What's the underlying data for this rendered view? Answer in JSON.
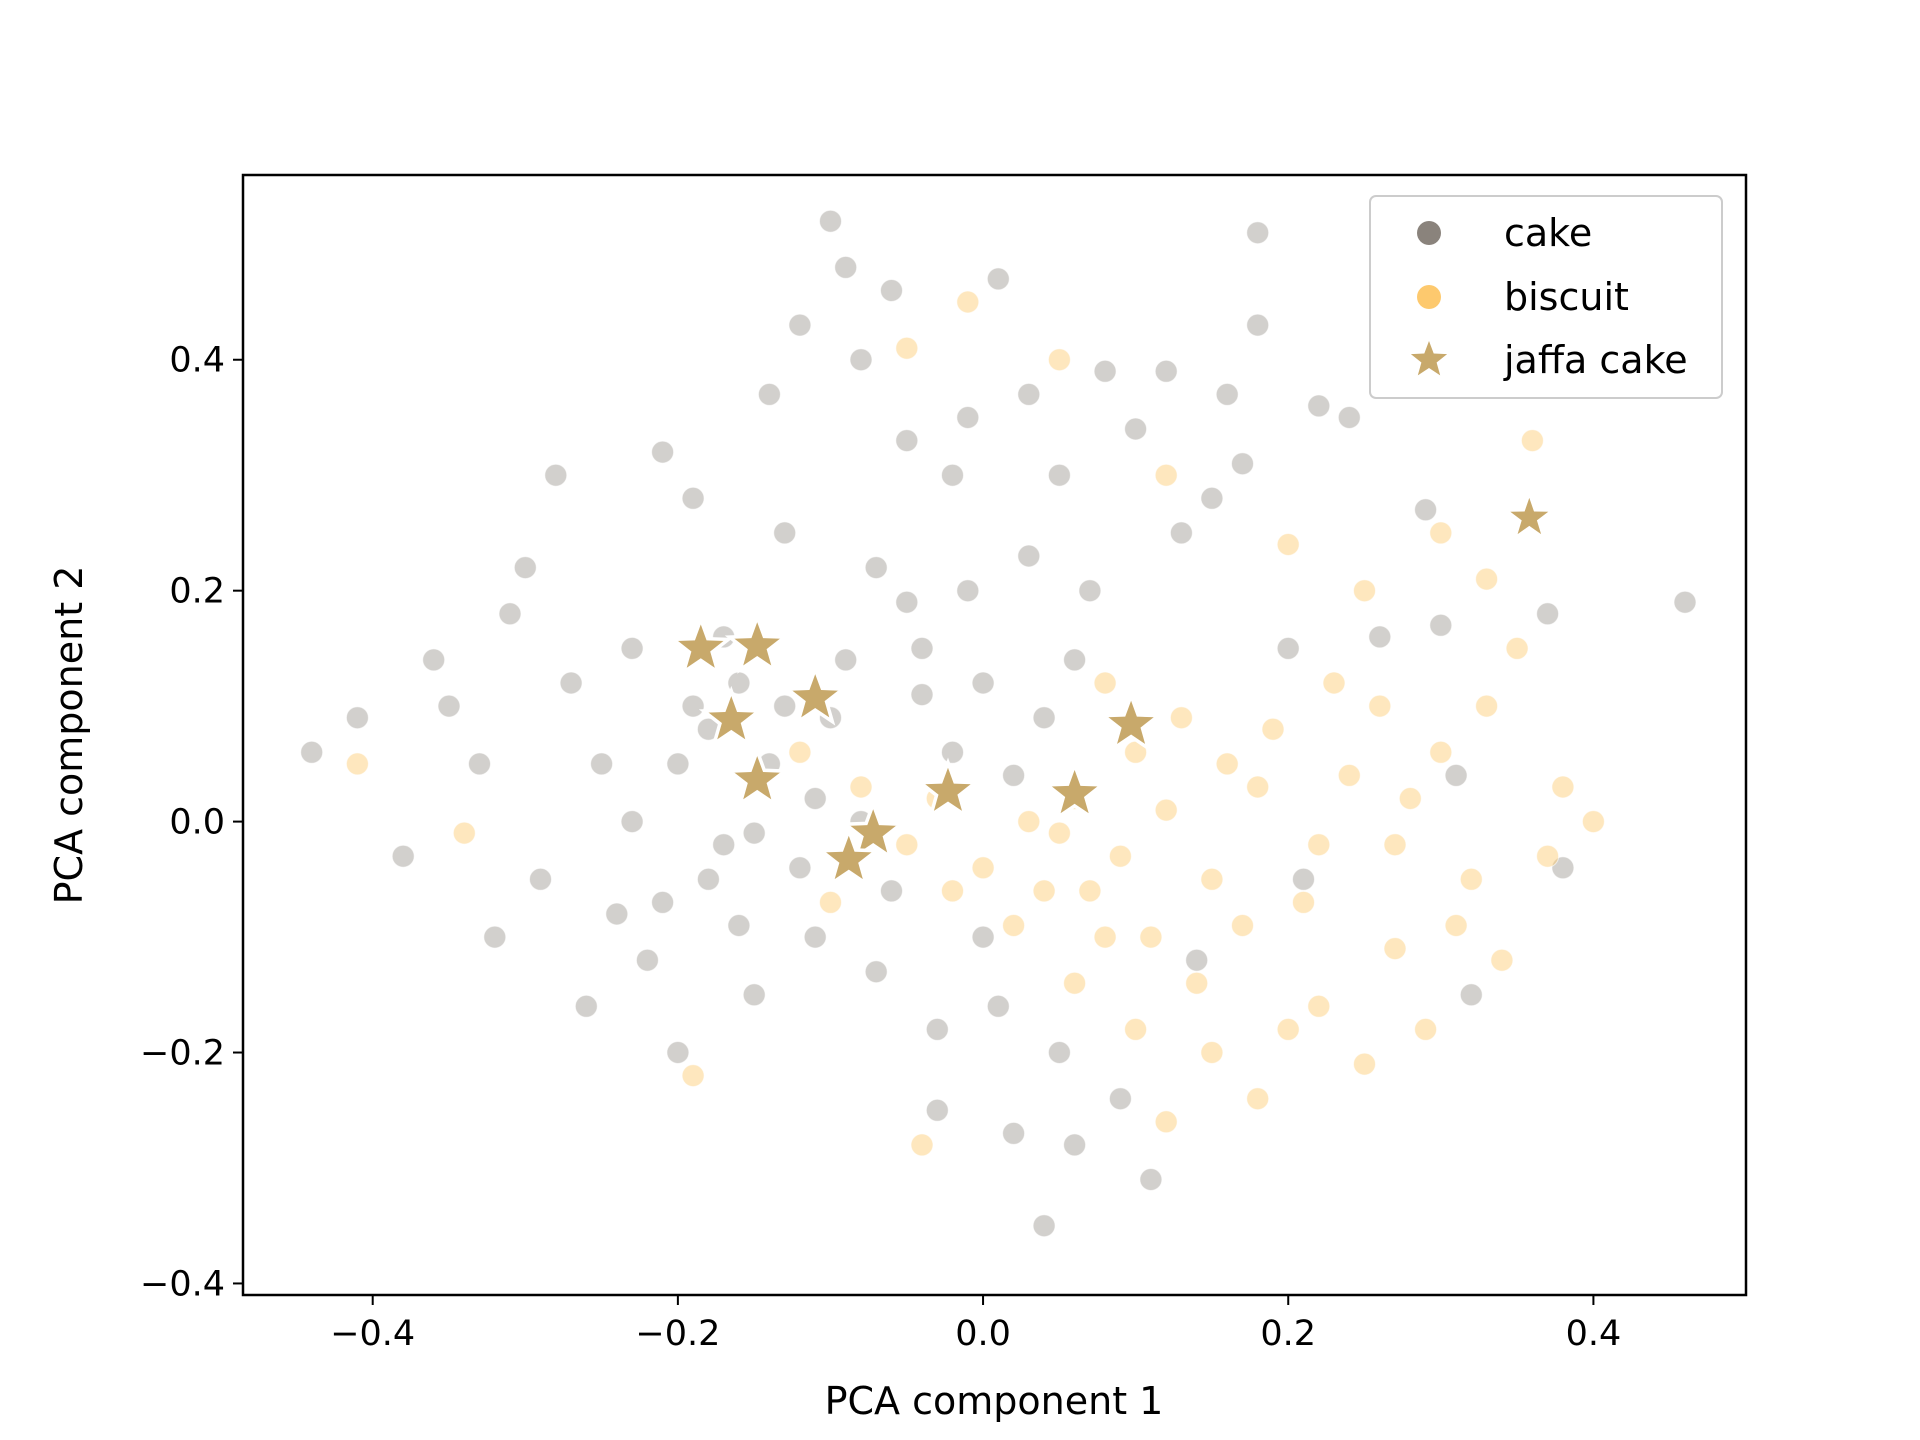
{
  "chart_data": {
    "type": "scatter",
    "title": "",
    "xlabel": "PCA component 1",
    "ylabel": "PCA component 2",
    "xlim": [
      -0.485,
      0.5
    ],
    "ylim": [
      -0.41,
      0.56
    ],
    "xticks": [
      -0.4,
      -0.2,
      0.0,
      0.2,
      0.4
    ],
    "yticks": [
      -0.4,
      -0.2,
      0.0,
      0.2,
      0.4
    ],
    "xtick_labels": [
      "−0.4",
      "−0.2",
      "0.0",
      "0.2",
      "0.4"
    ],
    "ytick_labels": [
      "−0.4",
      "−0.2",
      "0.0",
      "0.2",
      "0.4"
    ],
    "grid": false,
    "legend_position": "top-right",
    "series": [
      {
        "name": "cake",
        "marker": "circle",
        "color": "#8a837c",
        "points": [
          [
            -0.44,
            0.06
          ],
          [
            -0.41,
            0.09
          ],
          [
            -0.38,
            -0.03
          ],
          [
            -0.36,
            0.14
          ],
          [
            -0.35,
            0.1
          ],
          [
            -0.33,
            0.05
          ],
          [
            -0.32,
            -0.1
          ],
          [
            -0.31,
            0.18
          ],
          [
            -0.3,
            0.22
          ],
          [
            -0.29,
            -0.05
          ],
          [
            -0.28,
            0.3
          ],
          [
            -0.27,
            0.12
          ],
          [
            -0.26,
            -0.16
          ],
          [
            -0.25,
            0.05
          ],
          [
            -0.24,
            -0.08
          ],
          [
            -0.23,
            0.15
          ],
          [
            -0.22,
            -0.12
          ],
          [
            -0.21,
            0.32
          ],
          [
            -0.2,
            -0.2
          ],
          [
            -0.19,
            0.28
          ],
          [
            -0.18,
            0.08
          ],
          [
            -0.17,
            -0.02
          ],
          [
            -0.16,
            0.12
          ],
          [
            -0.15,
            -0.15
          ],
          [
            -0.14,
            0.37
          ],
          [
            -0.13,
            0.25
          ],
          [
            -0.12,
            0.43
          ],
          [
            -0.11,
            0.02
          ],
          [
            -0.1,
            0.52
          ],
          [
            -0.09,
            0.48
          ],
          [
            -0.08,
            0.4
          ],
          [
            -0.07,
            0.22
          ],
          [
            -0.06,
            0.46
          ],
          [
            -0.05,
            0.33
          ],
          [
            -0.04,
            0.15
          ],
          [
            -0.03,
            -0.25
          ],
          [
            -0.02,
            0.3
          ],
          [
            -0.01,
            0.35
          ],
          [
            0.0,
            -0.1
          ],
          [
            0.01,
            0.47
          ],
          [
            0.02,
            -0.27
          ],
          [
            0.03,
            0.37
          ],
          [
            0.04,
            -0.35
          ],
          [
            0.05,
            0.3
          ],
          [
            0.06,
            -0.28
          ],
          [
            0.07,
            0.2
          ],
          [
            0.08,
            0.39
          ],
          [
            0.09,
            -0.24
          ],
          [
            0.1,
            0.34
          ],
          [
            0.11,
            -0.31
          ],
          [
            0.12,
            0.39
          ],
          [
            0.13,
            0.25
          ],
          [
            0.14,
            -0.12
          ],
          [
            0.15,
            0.28
          ],
          [
            0.16,
            0.37
          ],
          [
            0.17,
            0.31
          ],
          [
            0.18,
            0.43
          ],
          [
            0.18,
            0.51
          ],
          [
            0.2,
            0.15
          ],
          [
            0.21,
            -0.05
          ],
          [
            0.22,
            0.36
          ],
          [
            0.24,
            0.35
          ],
          [
            0.26,
            0.16
          ],
          [
            0.29,
            0.27
          ],
          [
            0.3,
            0.17
          ],
          [
            0.31,
            0.04
          ],
          [
            0.32,
            -0.15
          ],
          [
            0.35,
            0.4
          ],
          [
            0.37,
            0.18
          ],
          [
            0.38,
            -0.04
          ],
          [
            0.46,
            0.19
          ],
          [
            -0.2,
            0.05
          ],
          [
            -0.18,
            -0.05
          ],
          [
            -0.16,
            -0.09
          ],
          [
            -0.14,
            0.05
          ],
          [
            -0.12,
            -0.04
          ],
          [
            -0.1,
            0.09
          ],
          [
            -0.08,
            0.0
          ],
          [
            -0.06,
            -0.06
          ],
          [
            -0.04,
            0.11
          ],
          [
            -0.02,
            0.06
          ],
          [
            0.0,
            0.12
          ],
          [
            0.02,
            0.04
          ],
          [
            0.04,
            0.09
          ],
          [
            0.06,
            0.14
          ],
          [
            -0.23,
            0.0
          ],
          [
            -0.21,
            -0.07
          ],
          [
            -0.19,
            0.1
          ],
          [
            -0.17,
            0.16
          ],
          [
            -0.15,
            -0.01
          ],
          [
            -0.13,
            0.1
          ],
          [
            -0.11,
            -0.1
          ],
          [
            -0.09,
            0.14
          ],
          [
            -0.07,
            -0.13
          ],
          [
            -0.05,
            0.19
          ],
          [
            -0.03,
            -0.18
          ],
          [
            -0.01,
            0.2
          ],
          [
            0.01,
            -0.16
          ],
          [
            0.03,
            0.23
          ],
          [
            0.05,
            -0.2
          ]
        ]
      },
      {
        "name": "biscuit",
        "marker": "circle",
        "color": "#fdc96e",
        "points": [
          [
            -0.41,
            0.05
          ],
          [
            -0.34,
            -0.01
          ],
          [
            -0.19,
            -0.22
          ],
          [
            -0.04,
            -0.28
          ],
          [
            -0.05,
            0.41
          ],
          [
            -0.01,
            0.45
          ],
          [
            0.05,
            0.4
          ],
          [
            0.12,
            0.3
          ],
          [
            0.2,
            0.24
          ],
          [
            0.25,
            0.2
          ],
          [
            0.3,
            0.25
          ],
          [
            0.33,
            0.21
          ],
          [
            0.36,
            0.33
          ],
          [
            0.38,
            0.03
          ],
          [
            0.4,
            0.0
          ],
          [
            0.37,
            -0.03
          ],
          [
            0.34,
            -0.12
          ],
          [
            0.31,
            -0.09
          ],
          [
            0.29,
            -0.18
          ],
          [
            0.27,
            -0.11
          ],
          [
            0.25,
            -0.21
          ],
          [
            0.22,
            -0.16
          ],
          [
            0.2,
            -0.18
          ],
          [
            0.18,
            -0.24
          ],
          [
            0.15,
            -0.2
          ],
          [
            0.12,
            -0.26
          ],
          [
            0.1,
            -0.18
          ],
          [
            0.08,
            -0.1
          ],
          [
            0.06,
            -0.14
          ],
          [
            0.04,
            -0.06
          ],
          [
            0.02,
            -0.09
          ],
          [
            0.0,
            -0.04
          ],
          [
            0.03,
            0.0
          ],
          [
            0.06,
            0.02
          ],
          [
            0.09,
            -0.03
          ],
          [
            0.12,
            0.01
          ],
          [
            0.15,
            -0.05
          ],
          [
            0.18,
            0.03
          ],
          [
            0.21,
            -0.07
          ],
          [
            0.24,
            0.04
          ],
          [
            0.27,
            -0.02
          ],
          [
            0.3,
            0.06
          ],
          [
            0.33,
            0.1
          ],
          [
            0.35,
            0.15
          ],
          [
            0.26,
            0.1
          ],
          [
            0.23,
            0.12
          ],
          [
            0.19,
            0.08
          ],
          [
            0.16,
            0.05
          ],
          [
            0.13,
            0.09
          ],
          [
            0.1,
            0.06
          ],
          [
            0.07,
            -0.06
          ],
          [
            0.05,
            -0.01
          ],
          [
            -0.02,
            -0.06
          ],
          [
            -0.05,
            -0.02
          ],
          [
            -0.08,
            0.03
          ],
          [
            -0.1,
            -0.07
          ],
          [
            -0.12,
            0.06
          ],
          [
            -0.03,
            0.02
          ],
          [
            0.11,
            -0.1
          ],
          [
            0.14,
            -0.14
          ],
          [
            0.17,
            -0.09
          ],
          [
            0.22,
            -0.02
          ],
          [
            0.28,
            0.02
          ],
          [
            0.32,
            -0.05
          ],
          [
            0.08,
            0.12
          ]
        ]
      },
      {
        "name": "jaffa cake",
        "marker": "star",
        "color": "#c8a96b",
        "points": [
          [
            -0.185,
            0.15
          ],
          [
            -0.148,
            0.152
          ],
          [
            -0.11,
            0.107
          ],
          [
            -0.165,
            0.088
          ],
          [
            -0.148,
            0.036
          ],
          [
            -0.072,
            -0.01
          ],
          [
            -0.088,
            -0.033
          ],
          [
            -0.023,
            0.026
          ],
          [
            0.06,
            0.024
          ],
          [
            0.097,
            0.084
          ],
          [
            0.358,
            0.263
          ]
        ]
      }
    ]
  }
}
